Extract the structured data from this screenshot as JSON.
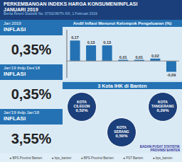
{
  "chart_data": {
    "type": "bar",
    "title": "Andil Inflasi Menurut Kelompok Pengeluaran (%)",
    "subtitle": "Berita Resmi Statistik No. 07/02/36/Th.XIII, 1 Februari 2019",
    "categories": [
      null,
      null,
      null,
      null,
      null,
      null,
      null
    ],
    "values": [
      0.17,
      0.13,
      0.13,
      0.01,
      0.01,
      0.02,
      -0.09
    ],
    "value_labels": [
      "0,17",
      "0,13",
      "0,13",
      "0,01",
      "0,01",
      "0,02",
      "-0,09"
    ],
    "color": "#2472b3",
    "ylim": [
      -0.14,
      0.26
    ],
    "yticks": [],
    "grid": false,
    "data_labels": true,
    "tick_labels": false,
    "annotations": [
      "PERKEMBANGAN INDEKS HARGA KONSUMEN/INFLASI",
      "JANUARI 2019",
      "Jan 2019",
      "INFLASI",
      "0,35%",
      "Jan'19 thdp Des'18",
      "INFLASI",
      "0,35%",
      "Jan'19 thdp Jan'18",
      "INFLASI",
      "3,55%",
      "3 Kota IHK di Banten",
      "KOTA",
      "CILEGON",
      "0,52%",
      "KOTA",
      "SERANG",
      "0,50%",
      "KOTA",
      "TANGERANG",
      "0,29%",
      "BADAN PUSAT STATISTIK",
      "PROVINSI BANTEN",
      "● BPS Provinsi Banten",
      "● bps_banten",
      "● BPS Provinsi Banten",
      "● PST Banten",
      "● bps_banten"
    ]
  }
}
